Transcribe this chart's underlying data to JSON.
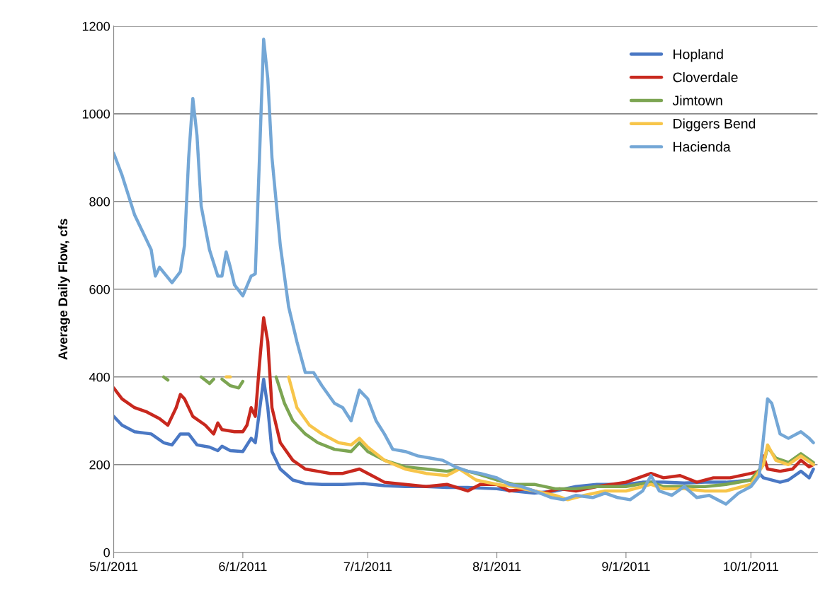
{
  "chart_data": {
    "type": "line",
    "ylabel": "Average Daily Flow, cfs",
    "xlim": [
      "2011-05-01",
      "2011-10-17"
    ],
    "xticks": [
      {
        "value": "2011-05-01",
        "label": "5/1/2011"
      },
      {
        "value": "2011-06-01",
        "label": "6/1/2011"
      },
      {
        "value": "2011-07-01",
        "label": "7/1/2011"
      },
      {
        "value": "2011-08-01",
        "label": "8/1/2011"
      },
      {
        "value": "2011-09-01",
        "label": "9/1/2011"
      },
      {
        "value": "2011-10-01",
        "label": "10/1/2011"
      }
    ],
    "ylim": [
      0,
      1200
    ],
    "yticks": [
      0,
      200,
      400,
      600,
      800,
      1000,
      1200
    ],
    "grid": "y",
    "legend": "top right",
    "line_style": "solid",
    "marker": "none",
    "series": [
      {
        "name": "Hopland",
        "color": "#4a78c4",
        "x": [
          "2011-05-01",
          "2011-05-03",
          "2011-05-06",
          "2011-05-10",
          "2011-05-13",
          "2011-05-15",
          "2011-05-17",
          "2011-05-19",
          "2011-05-21",
          "2011-05-24",
          "2011-05-26",
          "2011-05-27",
          "2011-05-29",
          "2011-06-01",
          "2011-06-03",
          "2011-06-04",
          "2011-06-06",
          "2011-06-07",
          "2011-06-08",
          "2011-06-10",
          "2011-06-13",
          "2011-06-16",
          "2011-06-20",
          "2011-06-25",
          "2011-06-30",
          "2011-07-05",
          "2011-07-10",
          "2011-07-15",
          "2011-07-20",
          "2011-07-25",
          "2011-08-01",
          "2011-08-05",
          "2011-08-10",
          "2011-08-15",
          "2011-08-20",
          "2011-08-25",
          "2011-09-01",
          "2011-09-05",
          "2011-09-10",
          "2011-09-15",
          "2011-09-20",
          "2011-09-25",
          "2011-10-01",
          "2011-10-03",
          "2011-10-04",
          "2011-10-08",
          "2011-10-10",
          "2011-10-13",
          "2011-10-15",
          "2011-10-16"
        ],
        "values": [
          310,
          290,
          275,
          270,
          250,
          245,
          270,
          270,
          245,
          240,
          232,
          242,
          232,
          230,
          260,
          250,
          395,
          330,
          230,
          190,
          165,
          157,
          155,
          155,
          157,
          152,
          150,
          150,
          148,
          148,
          145,
          140,
          135,
          140,
          150,
          155,
          155,
          160,
          160,
          158,
          160,
          160,
          165,
          180,
          170,
          160,
          165,
          185,
          170,
          190
        ]
      },
      {
        "name": "Cloverdale",
        "color": "#c8281e",
        "x": [
          "2011-05-01",
          "2011-05-03",
          "2011-05-06",
          "2011-05-09",
          "2011-05-12",
          "2011-05-14",
          "2011-05-16",
          "2011-05-17",
          "2011-05-18",
          "2011-05-20",
          "2011-05-23",
          "2011-05-25",
          "2011-05-26",
          "2011-05-27",
          "2011-05-30",
          "2011-06-01",
          "2011-06-02",
          "2011-06-03",
          "2011-06-04",
          "2011-06-05",
          "2011-06-06",
          "2011-06-07",
          "2011-06-08",
          "2011-06-10",
          "2011-06-13",
          "2011-06-16",
          "2011-06-19",
          "2011-06-22",
          "2011-06-25",
          "2011-06-29",
          "2011-07-02",
          "2011-07-05",
          "2011-07-10",
          "2011-07-15",
          "2011-07-20",
          "2011-07-25",
          "2011-07-28",
          "2011-08-01",
          "2011-08-04",
          "2011-08-08",
          "2011-08-12",
          "2011-08-16",
          "2011-08-20",
          "2011-08-25",
          "2011-09-01",
          "2011-09-07",
          "2011-09-10",
          "2011-09-14",
          "2011-09-18",
          "2011-09-22",
          "2011-09-26",
          "2011-10-01",
          "2011-10-03",
          "2011-10-04",
          "2011-10-05",
          "2011-10-08",
          "2011-10-11",
          "2011-10-13",
          "2011-10-15",
          "2011-10-16"
        ],
        "values": [
          375,
          350,
          330,
          320,
          305,
          290,
          330,
          360,
          350,
          310,
          290,
          270,
          295,
          280,
          275,
          275,
          290,
          330,
          310,
          430,
          535,
          480,
          330,
          250,
          210,
          190,
          185,
          180,
          180,
          190,
          175,
          160,
          155,
          150,
          155,
          140,
          155,
          155,
          140,
          145,
          135,
          145,
          140,
          150,
          160,
          180,
          170,
          175,
          160,
          170,
          170,
          180,
          185,
          220,
          190,
          185,
          190,
          210,
          195,
          200
        ]
      },
      {
        "name": "Jimtown",
        "color": "#7ca552",
        "x": [
          "2011-05-13",
          "2011-05-14",
          "2011-05-18",
          "2011-05-22",
          "2011-05-24",
          "2011-05-25",
          "2011-05-26",
          "2011-05-27",
          "2011-05-29",
          "2011-05-31",
          "2011-06-01",
          "2011-06-05",
          "2011-06-09",
          "2011-06-11",
          "2011-06-13",
          "2011-06-16",
          "2011-06-19",
          "2011-06-23",
          "2011-06-27",
          "2011-06-29",
          "2011-07-01",
          "2011-07-05",
          "2011-07-10",
          "2011-07-15",
          "2011-07-20",
          "2011-07-23",
          "2011-07-27",
          "2011-08-01",
          "2011-08-05",
          "2011-08-10",
          "2011-08-15",
          "2011-08-20",
          "2011-08-25",
          "2011-09-01",
          "2011-09-07",
          "2011-09-10",
          "2011-09-15",
          "2011-09-20",
          "2011-09-25",
          "2011-10-01",
          "2011-10-04",
          "2011-10-05",
          "2011-10-07",
          "2011-10-10",
          "2011-10-13",
          "2011-10-16"
        ],
        "values": [
          400,
          393,
          null,
          400,
          385,
          395,
          null,
          395,
          380,
          375,
          390,
          null,
          400,
          340,
          300,
          270,
          250,
          235,
          230,
          250,
          230,
          210,
          195,
          190,
          185,
          190,
          180,
          165,
          155,
          155,
          145,
          145,
          150,
          150,
          160,
          150,
          150,
          150,
          155,
          165,
          200,
          240,
          215,
          205,
          225,
          205
        ]
      },
      {
        "name": "Diggers Bend",
        "color": "#f7c54a",
        "x": [
          "2011-05-28",
          "2011-05-29",
          "2011-06-05",
          "2011-06-12",
          "2011-06-14",
          "2011-06-17",
          "2011-06-20",
          "2011-06-24",
          "2011-06-27",
          "2011-06-29",
          "2011-07-01",
          "2011-07-05",
          "2011-07-10",
          "2011-07-15",
          "2011-07-20",
          "2011-07-23",
          "2011-07-27",
          "2011-08-01",
          "2011-08-05",
          "2011-08-10",
          "2011-08-15",
          "2011-08-18",
          "2011-08-22",
          "2011-08-27",
          "2011-09-01",
          "2011-09-07",
          "2011-09-10",
          "2011-09-15",
          "2011-09-20",
          "2011-09-25",
          "2011-10-01",
          "2011-10-04",
          "2011-10-05",
          "2011-10-07",
          "2011-10-10",
          "2011-10-13",
          "2011-10-16"
        ],
        "values": [
          400,
          400,
          null,
          400,
          330,
          290,
          270,
          250,
          245,
          260,
          240,
          210,
          190,
          180,
          175,
          190,
          165,
          155,
          150,
          140,
          130,
          120,
          130,
          140,
          140,
          155,
          145,
          145,
          140,
          140,
          155,
          200,
          245,
          210,
          200,
          220,
          200
        ]
      },
      {
        "name": "Hacienda",
        "color": "#74a7d6",
        "x": [
          "2011-05-01",
          "2011-05-03",
          "2011-05-06",
          "2011-05-09",
          "2011-05-10",
          "2011-05-11",
          "2011-05-12",
          "2011-05-15",
          "2011-05-17",
          "2011-05-18",
          "2011-05-19",
          "2011-05-20",
          "2011-05-21",
          "2011-05-22",
          "2011-05-24",
          "2011-05-26",
          "2011-05-27",
          "2011-05-28",
          "2011-05-29",
          "2011-05-30",
          "2011-06-01",
          "2011-06-03",
          "2011-06-04",
          "2011-06-05",
          "2011-06-06",
          "2011-06-07",
          "2011-06-08",
          "2011-06-10",
          "2011-06-12",
          "2011-06-14",
          "2011-06-16",
          "2011-06-18",
          "2011-06-20",
          "2011-06-23",
          "2011-06-25",
          "2011-06-27",
          "2011-06-29",
          "2011-07-01",
          "2011-07-03",
          "2011-07-05",
          "2011-07-07",
          "2011-07-10",
          "2011-07-13",
          "2011-07-16",
          "2011-07-19",
          "2011-07-22",
          "2011-07-25",
          "2011-07-28",
          "2011-08-01",
          "2011-08-04",
          "2011-08-07",
          "2011-08-10",
          "2011-08-14",
          "2011-08-17",
          "2011-08-20",
          "2011-08-24",
          "2011-08-27",
          "2011-08-30",
          "2011-09-02",
          "2011-09-05",
          "2011-09-07",
          "2011-09-09",
          "2011-09-12",
          "2011-09-15",
          "2011-09-18",
          "2011-09-21",
          "2011-09-25",
          "2011-09-28",
          "2011-10-01",
          "2011-10-03",
          "2011-10-04",
          "2011-10-05",
          "2011-10-06",
          "2011-10-08",
          "2011-10-10",
          "2011-10-13",
          "2011-10-15",
          "2011-10-16"
        ],
        "values": [
          910,
          860,
          770,
          710,
          690,
          630,
          650,
          615,
          640,
          700,
          900,
          1035,
          950,
          790,
          690,
          630,
          630,
          685,
          650,
          610,
          585,
          630,
          635,
          900,
          1170,
          1080,
          900,
          700,
          560,
          480,
          410,
          410,
          380,
          340,
          330,
          300,
          370,
          350,
          300,
          270,
          235,
          230,
          220,
          215,
          210,
          195,
          185,
          180,
          170,
          155,
          150,
          140,
          125,
          120,
          130,
          125,
          135,
          125,
          120,
          140,
          175,
          140,
          130,
          150,
          125,
          130,
          110,
          135,
          150,
          175,
          260,
          350,
          340,
          270,
          260,
          275,
          260,
          250
        ]
      }
    ]
  }
}
